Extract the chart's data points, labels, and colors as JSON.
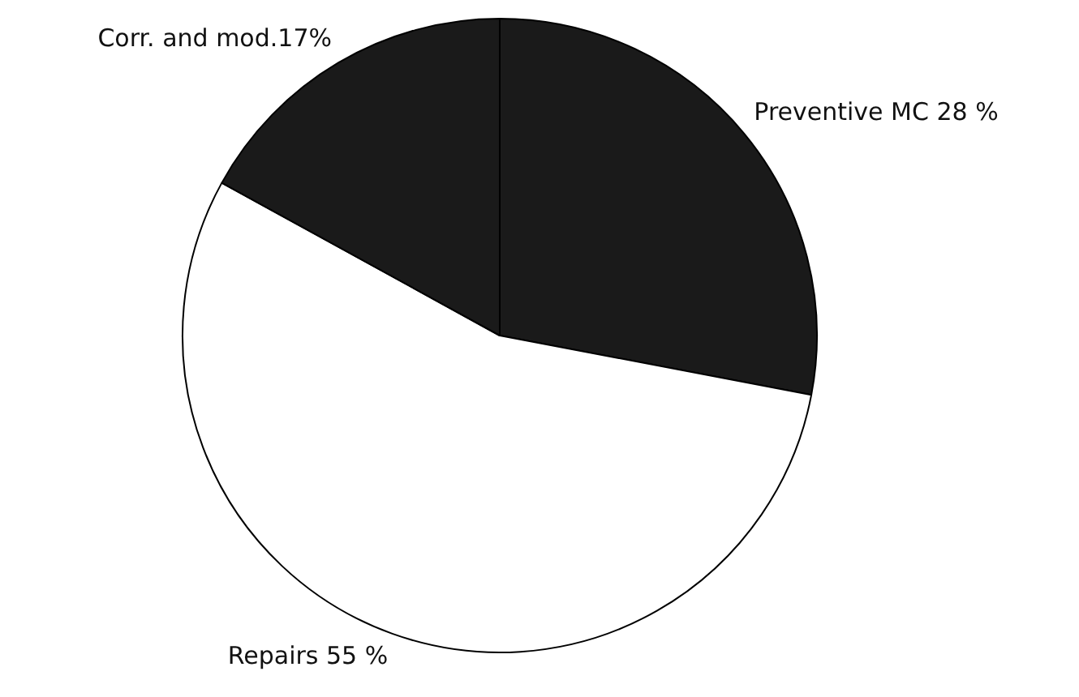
{
  "chart_data": {
    "type": "pie",
    "categories": [
      "Preventive MC 28 %",
      "Repairs 55 %",
      "Corr. and mod.17%"
    ],
    "values": [
      28,
      55,
      17
    ],
    "colors": [
      "#1a1a1a",
      "#ffffff",
      "#1a1a1a"
    ]
  }
}
